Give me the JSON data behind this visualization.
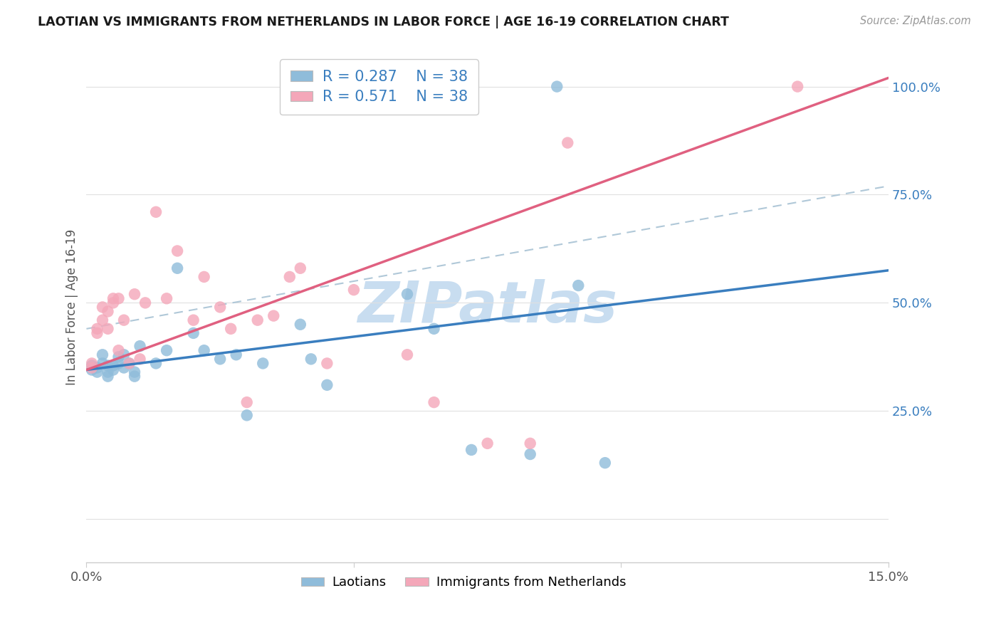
{
  "title": "LAOTIAN VS IMMIGRANTS FROM NETHERLANDS IN LABOR FORCE | AGE 16-19 CORRELATION CHART",
  "source_text": "Source: ZipAtlas.com",
  "ylabel": "In Labor Force | Age 16-19",
  "watermark_text": "ZIPatlas",
  "R_laotian": 0.287,
  "N_laotian": 38,
  "R_netherlands": 0.571,
  "N_netherlands": 38,
  "blue_scatter": "#8fbcda",
  "pink_scatter": "#f4a7b9",
  "blue_line": "#3a7ebf",
  "pink_line": "#e06080",
  "dash_line": "#b0c8d8",
  "watermark_color": "#c8ddf0",
  "bg_color": "#ffffff",
  "title_color": "#1a1a1a",
  "axis_color": "#3a7ebf",
  "tick_color": "#555555",
  "grid_color": "#e0e0e0",
  "xmin": 0.0,
  "xmax": 0.15,
  "ymin": -0.1,
  "ymax": 1.08,
  "blue_line_x0": 0.0,
  "blue_line_y0": 0.345,
  "blue_line_x1": 0.15,
  "blue_line_y1": 0.575,
  "pink_line_x0": 0.0,
  "pink_line_y0": 0.345,
  "pink_line_x1": 0.15,
  "pink_line_y1": 1.02,
  "dash_line_x0": 0.0,
  "dash_line_y0": 0.44,
  "dash_line_x1": 0.15,
  "dash_line_y1": 0.77,
  "lao_x": [
    0.001,
    0.001,
    0.002,
    0.002,
    0.003,
    0.003,
    0.004,
    0.004,
    0.004,
    0.005,
    0.005,
    0.006,
    0.006,
    0.007,
    0.007,
    0.008,
    0.009,
    0.009,
    0.01,
    0.013,
    0.015,
    0.017,
    0.02,
    0.022,
    0.025,
    0.028,
    0.03,
    0.033,
    0.04,
    0.042,
    0.045,
    0.06,
    0.065,
    0.072,
    0.083,
    0.088,
    0.092,
    0.097
  ],
  "lao_y": [
    0.355,
    0.345,
    0.35,
    0.34,
    0.38,
    0.36,
    0.355,
    0.34,
    0.33,
    0.355,
    0.345,
    0.375,
    0.36,
    0.38,
    0.35,
    0.36,
    0.34,
    0.33,
    0.4,
    0.36,
    0.39,
    0.58,
    0.43,
    0.39,
    0.37,
    0.38,
    0.24,
    0.36,
    0.45,
    0.37,
    0.31,
    0.52,
    0.44,
    0.16,
    0.15,
    1.0,
    0.54,
    0.13
  ],
  "neth_x": [
    0.001,
    0.001,
    0.002,
    0.002,
    0.003,
    0.003,
    0.004,
    0.004,
    0.005,
    0.005,
    0.006,
    0.006,
    0.007,
    0.008,
    0.009,
    0.01,
    0.011,
    0.013,
    0.015,
    0.017,
    0.02,
    0.022,
    0.025,
    0.027,
    0.03,
    0.032,
    0.035,
    0.038,
    0.04,
    0.045,
    0.05,
    0.06,
    0.065,
    0.07,
    0.075,
    0.083,
    0.09,
    0.133
  ],
  "neth_y": [
    0.36,
    0.35,
    0.43,
    0.44,
    0.49,
    0.46,
    0.48,
    0.44,
    0.5,
    0.51,
    0.51,
    0.39,
    0.46,
    0.36,
    0.52,
    0.37,
    0.5,
    0.71,
    0.51,
    0.62,
    0.46,
    0.56,
    0.49,
    0.44,
    0.27,
    0.46,
    0.47,
    0.56,
    0.58,
    0.36,
    0.53,
    0.38,
    0.27,
    1.0,
    0.175,
    0.175,
    0.87,
    1.0
  ]
}
